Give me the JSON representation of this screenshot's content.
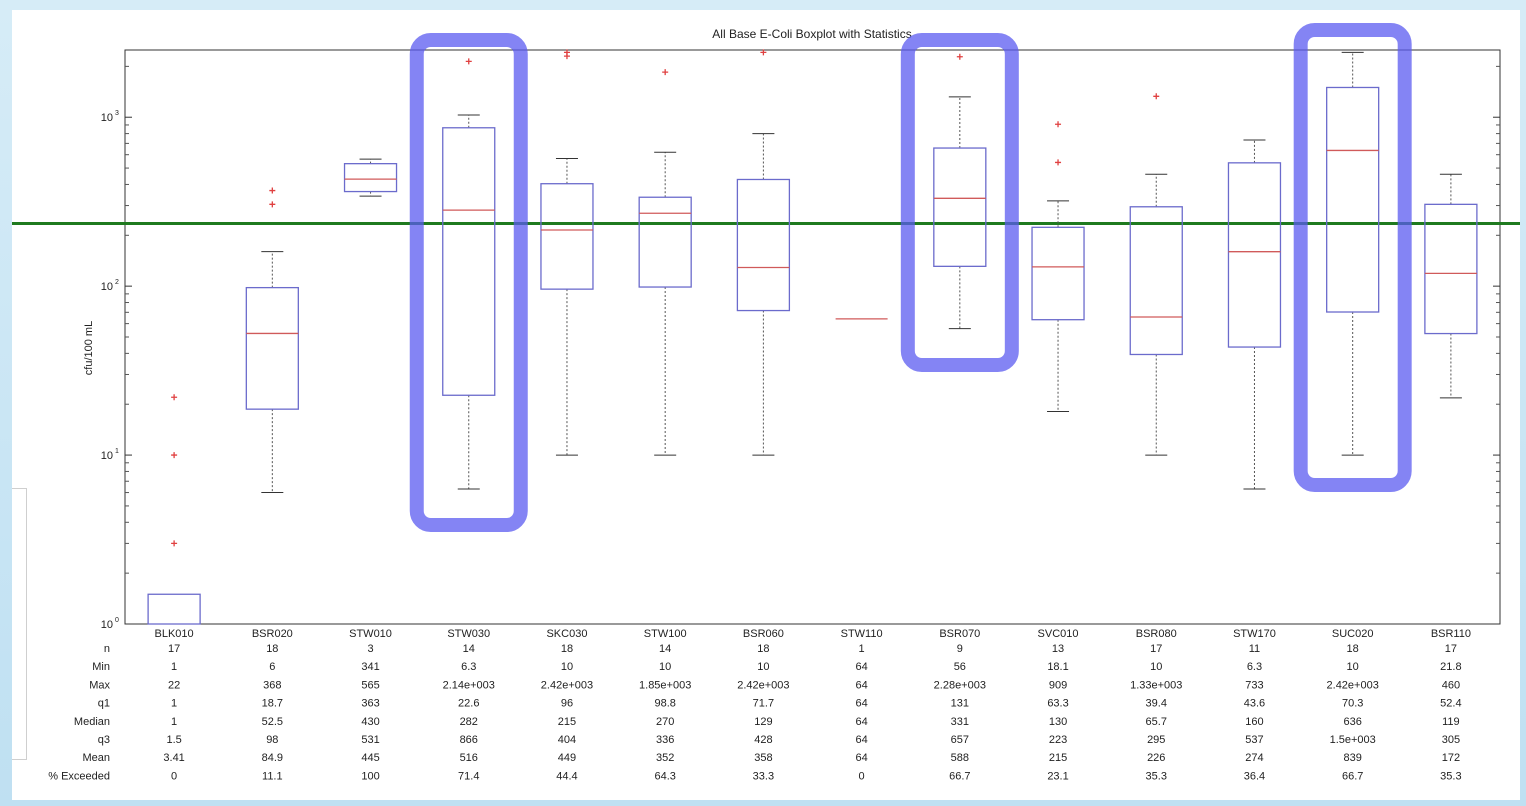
{
  "chart_data": {
    "type": "box",
    "title": "All Base E-Coli Boxplot with Statistics",
    "ylabel": "cfu/100 mL",
    "yscale": "log",
    "ylim": [
      1,
      2500
    ],
    "yticks": [
      {
        "value": 1,
        "base": "10",
        "exp": "0"
      },
      {
        "value": 10,
        "base": "10",
        "exp": "1"
      },
      {
        "value": 100,
        "base": "10",
        "exp": "2"
      },
      {
        "value": 1000,
        "base": "10",
        "exp": "3"
      }
    ],
    "threshold": 235,
    "threshold_color": "#1f7a1f",
    "box_color": "#6b6bcc",
    "median_color": "#d05a5a",
    "outlier_color": "#e04040",
    "highlight_color": "#5b5bf0",
    "categories": [
      "BLK010",
      "BSR020",
      "STW010",
      "STW030",
      "SKC030",
      "STW100",
      "BSR060",
      "STW110",
      "BSR070",
      "SVC010",
      "BSR080",
      "STW170",
      "SUC020",
      "BSR110"
    ],
    "boxes": [
      {
        "q1": 1,
        "median": 1,
        "q3": 1.5,
        "whisker_low": 1,
        "whisker_high": 1.5,
        "outliers": [
          3,
          10,
          22
        ]
      },
      {
        "q1": 18.7,
        "median": 52.5,
        "q3": 98,
        "whisker_low": 6,
        "whisker_high": 160,
        "outliers": [
          305,
          368
        ]
      },
      {
        "q1": 363,
        "median": 430,
        "q3": 531,
        "whisker_low": 341,
        "whisker_high": 565,
        "outliers": []
      },
      {
        "q1": 22.6,
        "median": 282,
        "q3": 866,
        "whisker_low": 6.3,
        "whisker_high": 1030,
        "outliers": [
          2140
        ]
      },
      {
        "q1": 96,
        "median": 215,
        "q3": 404,
        "whisker_low": 10,
        "whisker_high": 570,
        "outliers": [
          2300,
          2420
        ]
      },
      {
        "q1": 98.8,
        "median": 270,
        "q3": 336,
        "whisker_low": 10,
        "whisker_high": 620,
        "outliers": [
          1850
        ]
      },
      {
        "q1": 71.7,
        "median": 129,
        "q3": 428,
        "whisker_low": 10,
        "whisker_high": 800,
        "outliers": [
          2420
        ]
      },
      {
        "q1": 64,
        "median": 64,
        "q3": 64,
        "whisker_low": 64,
        "whisker_high": 64,
        "outliers": []
      },
      {
        "q1": 131,
        "median": 331,
        "q3": 657,
        "whisker_low": 56,
        "whisker_high": 1320,
        "outliers": [
          2280
        ]
      },
      {
        "q1": 63.3,
        "median": 130,
        "q3": 223,
        "whisker_low": 18.1,
        "whisker_high": 320,
        "outliers": [
          540,
          909
        ]
      },
      {
        "q1": 39.4,
        "median": 65.7,
        "q3": 295,
        "whisker_low": 10,
        "whisker_high": 460,
        "outliers": [
          1330
        ]
      },
      {
        "q1": 43.6,
        "median": 160,
        "q3": 537,
        "whisker_low": 6.3,
        "whisker_high": 733,
        "outliers": []
      },
      {
        "q1": 70.3,
        "median": 636,
        "q3": 1500,
        "whisker_low": 10,
        "whisker_high": 2420,
        "outliers": []
      },
      {
        "q1": 52.4,
        "median": 119,
        "q3": 305,
        "whisker_low": 21.8,
        "whisker_high": 460,
        "outliers": []
      }
    ],
    "highlighted": [
      "STW030",
      "BSR070",
      "SUC020"
    ],
    "grid": false,
    "stats_table": {
      "row_labels": [
        "n",
        "Min",
        "Max",
        "q1",
        "Median",
        "q3",
        "Mean",
        "% Exceeded"
      ],
      "rows": [
        [
          "17",
          "18",
          "3",
          "14",
          "18",
          "14",
          "18",
          "1",
          "9",
          "13",
          "17",
          "11",
          "18",
          "17"
        ],
        [
          "1",
          "6",
          "341",
          "6.3",
          "10",
          "10",
          "10",
          "64",
          "56",
          "18.1",
          "10",
          "6.3",
          "10",
          "21.8"
        ],
        [
          "22",
          "368",
          "565",
          "2.14e+003",
          "2.42e+003",
          "1.85e+003",
          "2.42e+003",
          "64",
          "2.28e+003",
          "909",
          "1.33e+003",
          "733",
          "2.42e+003",
          "460"
        ],
        [
          "1",
          "18.7",
          "363",
          "22.6",
          "96",
          "98.8",
          "71.7",
          "64",
          "131",
          "63.3",
          "39.4",
          "43.6",
          "70.3",
          "52.4"
        ],
        [
          "1",
          "52.5",
          "430",
          "282",
          "215",
          "270",
          "129",
          "64",
          "331",
          "130",
          "65.7",
          "160",
          "636",
          "119"
        ],
        [
          "1.5",
          "98",
          "531",
          "866",
          "404",
          "336",
          "428",
          "64",
          "657",
          "223",
          "295",
          "537",
          "1.5e+003",
          "305"
        ],
        [
          "3.41",
          "84.9",
          "445",
          "516",
          "449",
          "352",
          "358",
          "64",
          "588",
          "215",
          "226",
          "274",
          "839",
          "172"
        ],
        [
          "0",
          "11.1",
          "100",
          "71.4",
          "44.4",
          "64.3",
          "33.3",
          "0",
          "66.7",
          "23.1",
          "35.3",
          "36.4",
          "66.7",
          "35.3"
        ]
      ]
    }
  }
}
